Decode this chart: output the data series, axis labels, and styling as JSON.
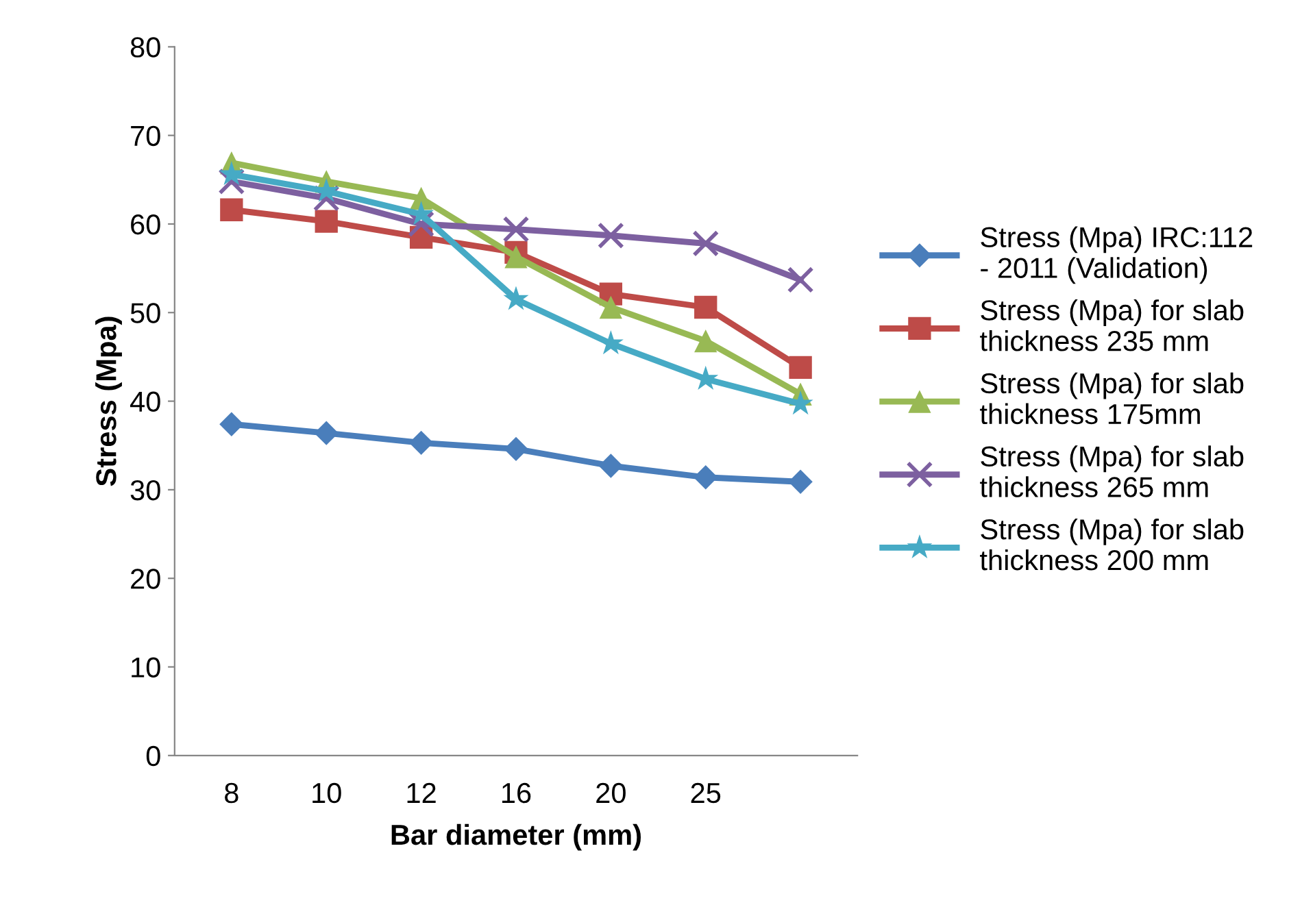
{
  "chart_data": {
    "type": "line",
    "xlabel": "Bar diameter (mm)",
    "ylabel": "Stress (Mpa)",
    "categories": [
      "8",
      "10",
      "12",
      "16",
      "20",
      "25",
      null
    ],
    "series": [
      {
        "name": "Stress (Mpa) IRC:112 - 2011 (Validation)",
        "color": "#4a7ebb",
        "marker": "diamond",
        "values": [
          37.4,
          36.4,
          35.3,
          34.6,
          32.7,
          31.4,
          30.9
        ]
      },
      {
        "name": "Stress (Mpa) for slab thickness 235 mm",
        "color": "#be4b48",
        "marker": "square",
        "values": [
          61.6,
          60.3,
          58.5,
          56.8,
          52.1,
          50.6,
          43.8
        ]
      },
      {
        "name": "Stress (Mpa) for slab thickness 175mm",
        "color": "#98b954",
        "marker": "triangle",
        "values": [
          66.9,
          64.8,
          62.9,
          56.3,
          50.6,
          46.8,
          40.8
        ]
      },
      {
        "name": "Stress (Mpa) for slab thickness 265 mm",
        "color": "#7d60a0",
        "marker": "cross",
        "values": [
          64.8,
          62.9,
          60.0,
          59.4,
          58.7,
          57.8,
          53.7
        ]
      },
      {
        "name": "Stress (Mpa) for slab thickness 200 mm",
        "color": "#46aac5",
        "marker": "star",
        "values": [
          65.6,
          63.7,
          61.1,
          51.5,
          46.5,
          42.5,
          39.7
        ]
      }
    ],
    "ylim": [
      0,
      80
    ],
    "yticks": [
      0,
      10,
      20,
      30,
      40,
      50,
      60,
      70,
      80
    ],
    "grid": false,
    "legend": "right"
  }
}
